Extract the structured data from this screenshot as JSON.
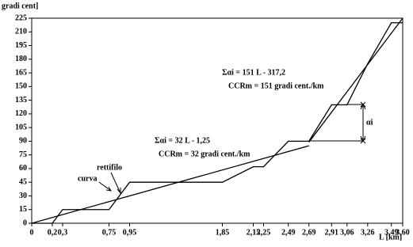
{
  "chart_data": {
    "type": "line",
    "y_label": "gradi cent]",
    "x_label": "L [km]",
    "xlim": [
      0,
      3.6
    ],
    "ylim": [
      0,
      225
    ],
    "xticks": [
      0,
      {
        "value": 0.2,
        "label": "0,2"
      },
      {
        "value": 0.3,
        "label": "0,3"
      },
      {
        "value": 0.75,
        "label": "0,75"
      },
      {
        "value": 0.95,
        "label": "0,95"
      },
      {
        "value": 1.85,
        "label": "1,85"
      },
      {
        "value": 2.15,
        "label": "2,15"
      },
      {
        "value": 2.25,
        "label": "2,25"
      },
      {
        "value": 2.49,
        "label": "2,49"
      },
      {
        "value": 2.69,
        "label": "2,69"
      },
      {
        "value": 2.91,
        "label": "2,91"
      },
      {
        "value": 3.06,
        "label": "3,06"
      },
      {
        "value": 3.26,
        "label": "3,26"
      },
      {
        "value": 3.49,
        "label": "3,49"
      },
      {
        "value": 3.6,
        "label": "3,60"
      }
    ],
    "yticks": [
      0,
      15,
      30,
      45,
      60,
      75,
      90,
      105,
      120,
      135,
      150,
      165,
      180,
      195,
      210,
      225
    ],
    "series": [
      {
        "name": "curva",
        "color": "#000000",
        "x": [
          0,
          0.2,
          0.3,
          0.75,
          0.95,
          1.85,
          2.15,
          2.25,
          2.49,
          2.69,
          2.91,
          3.06,
          3.26,
          3.49,
          3.6
        ],
        "values": [
          0,
          0,
          15,
          15,
          45,
          45,
          62,
          62,
          90,
          90,
          130,
          130,
          175,
          220,
          220
        ]
      },
      {
        "name": "rettifilo",
        "color": "#000000",
        "x": [
          0,
          2.69
        ],
        "values": [
          0,
          85
        ]
      },
      {
        "color": "#000000",
        "x": [
          2.69,
          3.6
        ],
        "values": [
          89,
          225
        ]
      }
    ],
    "annotations": [
      "Σαi = 151 L - 317,2",
      "CCRm = 151 gradi cent./km",
      "Σαi = 32 L - 1,25",
      "CCRm = 32 gradi cent./km",
      "αi"
    ]
  }
}
